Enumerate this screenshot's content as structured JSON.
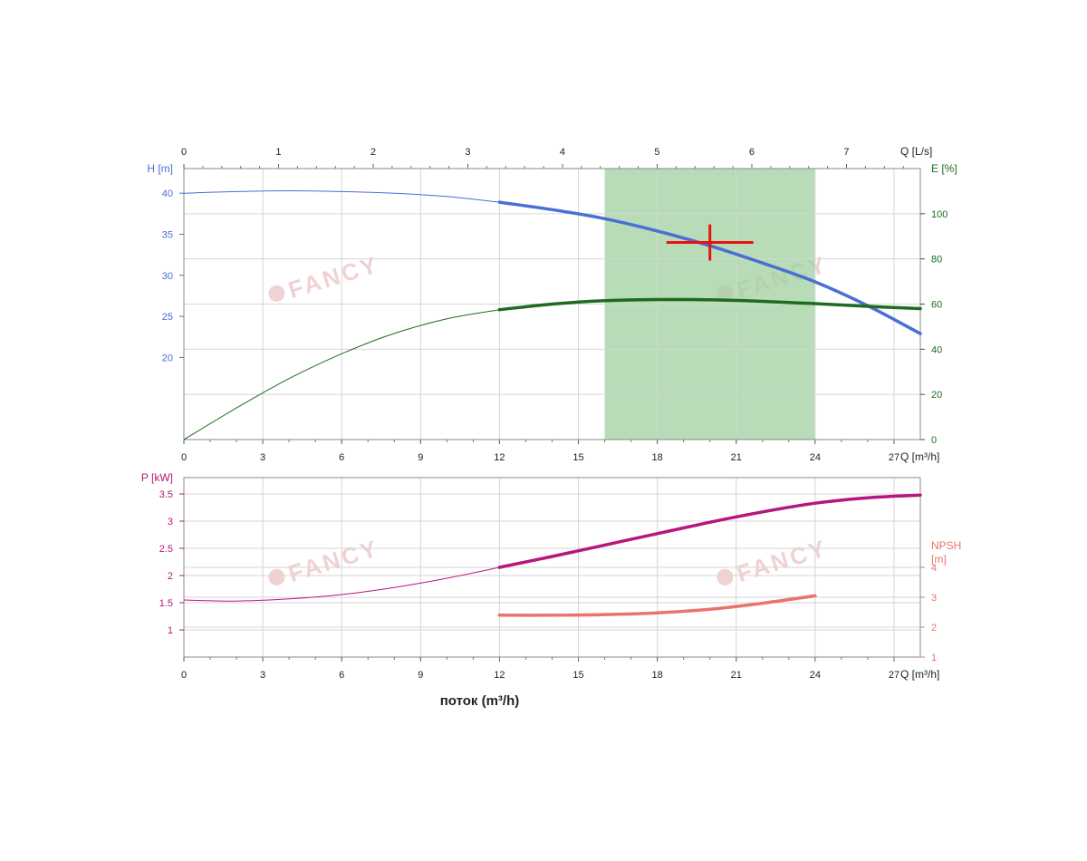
{
  "chart_data": [
    {
      "panel": "upper",
      "type": "line",
      "top_axis": {
        "label": "Q [L/s]",
        "ticks": [
          0,
          1,
          2,
          3,
          4,
          5,
          6,
          7
        ],
        "range": [
          0,
          7.78
        ]
      },
      "x_axis": {
        "label": "Q [m³/h]",
        "ticks": [
          0,
          3,
          6,
          9,
          12,
          15,
          18,
          21,
          24,
          27
        ],
        "range": [
          0,
          28
        ]
      },
      "y_left": {
        "label": "H [m]",
        "ticks": [
          20,
          25,
          30,
          35,
          40
        ],
        "range": [
          10,
          43
        ],
        "color": "#4a6fd4"
      },
      "y_right": {
        "label": "E [%]",
        "ticks": [
          0,
          20,
          40,
          60,
          80,
          100
        ],
        "range": [
          0,
          120
        ],
        "color": "#1f6b1f"
      },
      "grid": true,
      "operating_range": {
        "x_from": 16,
        "x_to": 24,
        "color": "#9fd09f"
      },
      "duty_point": {
        "x": 20,
        "y": 34,
        "color": "#e8140c"
      },
      "series": [
        {
          "axis": "left",
          "color": "#4a6fd4",
          "bold_from_x": 12,
          "x": [
            0,
            2,
            4,
            6,
            8,
            10,
            12,
            14,
            16,
            18,
            20,
            22,
            24,
            26,
            28
          ],
          "values": [
            40.0,
            40.2,
            40.3,
            40.2,
            40.0,
            39.6,
            38.9,
            38.0,
            36.9,
            35.4,
            33.6,
            31.5,
            29.2,
            26.3,
            22.9
          ]
        },
        {
          "axis": "right",
          "color": "#1f6b1f",
          "bold_from_x": 12,
          "x": [
            0,
            2,
            4,
            6,
            8,
            10,
            12,
            14,
            16,
            18,
            20,
            22,
            24,
            26,
            28
          ],
          "values": [
            0,
            14,
            27,
            38,
            47,
            53.5,
            57.5,
            60,
            61.5,
            62,
            61.9,
            61.2,
            60.2,
            59,
            58
          ]
        }
      ]
    },
    {
      "panel": "lower",
      "type": "line",
      "xlabel": "поток (m³/h)",
      "x_axis": {
        "label": "Q [m³/h]",
        "ticks": [
          0,
          3,
          6,
          9,
          12,
          15,
          18,
          21,
          24,
          27
        ],
        "range": [
          0,
          28
        ]
      },
      "y_left": {
        "label": "P [kW]",
        "ticks": [
          1,
          1.5,
          2,
          2.5,
          3,
          3.5
        ],
        "range": [
          0.5,
          3.8
        ],
        "color": "#b5177e"
      },
      "y_right": {
        "label_lines": [
          "NPSH",
          "[m]"
        ],
        "ticks": [
          1,
          2,
          3,
          4
        ],
        "range": [
          1,
          7
        ],
        "color": "#e8746c"
      },
      "grid": true,
      "series": [
        {
          "axis": "left",
          "color": "#b5177e",
          "bold_from_x": 12,
          "x": [
            0,
            2,
            4,
            6,
            8,
            10,
            12,
            14,
            16,
            18,
            20,
            22,
            24,
            26,
            28
          ],
          "values": [
            1.55,
            1.53,
            1.57,
            1.65,
            1.78,
            1.95,
            2.15,
            2.35,
            2.56,
            2.77,
            2.98,
            3.17,
            3.33,
            3.43,
            3.48
          ]
        },
        {
          "axis": "right",
          "color": "#e8746c",
          "bold_from_x": 12,
          "x": [
            12,
            14,
            16,
            18,
            20,
            22,
            24
          ],
          "values": [
            2.4,
            2.4,
            2.42,
            2.48,
            2.6,
            2.8,
            3.05
          ]
        }
      ]
    }
  ],
  "watermark": {
    "text": "FANCY",
    "color": "#f1d2d2"
  }
}
